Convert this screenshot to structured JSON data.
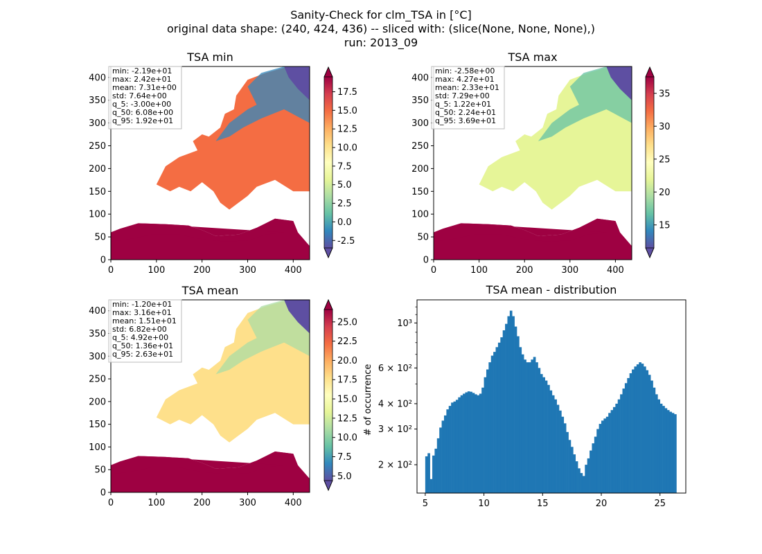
{
  "figure": {
    "title_lines": [
      "Sanity-Check for clm_TSA in [°C]",
      "original data shape: (240, 424, 436) -- sliced with: (slice(None, None, None),)",
      "run: 2013_09"
    ]
  },
  "chart_data": [
    {
      "type": "heatmap",
      "title": "TSA min",
      "xticks": [
        0,
        100,
        200,
        300,
        400
      ],
      "yticks": [
        0,
        50,
        100,
        150,
        200,
        250,
        300,
        350,
        400
      ],
      "xlim": [
        0,
        436
      ],
      "ylim": [
        0,
        424
      ],
      "colormap": "Spectral_r",
      "colorbar_ticks": [
        "-2.5",
        "0.0",
        "2.5",
        "5.0",
        "7.5",
        "10.0",
        "12.5",
        "15.0",
        "17.5"
      ],
      "colorbar_range": [
        -3.5,
        19.5
      ],
      "colorbar_extend": "both",
      "stats": [
        "min: -2.19e+01",
        "max: 2.42e+01",
        "mean: 7.31e+00",
        "std: 7.64e+00",
        "q_5: -3.00e+00",
        "q_50: 6.08e+00",
        "q_95: 1.92e+01"
      ]
    },
    {
      "type": "heatmap",
      "title": "TSA max",
      "xticks": [
        0,
        100,
        200,
        300,
        400
      ],
      "yticks": [
        0,
        50,
        100,
        150,
        200,
        250,
        300,
        350,
        400
      ],
      "xlim": [
        0,
        436
      ],
      "ylim": [
        0,
        424
      ],
      "colormap": "Spectral_r",
      "colorbar_ticks": [
        "15",
        "20",
        "25",
        "30",
        "35"
      ],
      "colorbar_range": [
        11.5,
        37.5
      ],
      "colorbar_extend": "both",
      "stats": [
        "min: -2.58e+00",
        "max: 4.27e+01",
        "mean: 2.33e+01",
        "std: 7.29e+00",
        "q_5: 1.22e+01",
        "q_50: 2.24e+01",
        "q_95: 3.69e+01"
      ]
    },
    {
      "type": "heatmap",
      "title": "TSA mean",
      "xticks": [
        0,
        100,
        200,
        300,
        400
      ],
      "yticks": [
        0,
        50,
        100,
        150,
        200,
        250,
        300,
        350,
        400
      ],
      "xlim": [
        0,
        436
      ],
      "ylim": [
        0,
        424
      ],
      "colormap": "Spectral_r",
      "colorbar_ticks": [
        "5.0",
        "7.5",
        "10.0",
        "12.5",
        "15.0",
        "17.5",
        "20.0",
        "22.5",
        "25.0"
      ],
      "colorbar_range": [
        4.4,
        26.6
      ],
      "colorbar_extend": "both",
      "stats": [
        "min: -1.20e+01",
        "max: 3.16e+01",
        "mean: 1.51e+01",
        "std: 6.82e+00",
        "q_5: 4.92e+00",
        "q_50: 1.36e+01",
        "q_95: 2.63e+01"
      ]
    },
    {
      "type": "bar",
      "title": "TSA mean - distribution",
      "ylabel": "# of occurrence",
      "yscale": "log",
      "xlim": [
        4.3,
        27.2
      ],
      "ylim": [
        145,
        1300
      ],
      "xticks": [
        5,
        10,
        15,
        20,
        25
      ],
      "yticks": [
        {
          "value": 200,
          "label": "2 × 10²"
        },
        {
          "value": 300,
          "label": "3 × 10²"
        },
        {
          "value": 400,
          "label": "4 × 10²"
        },
        {
          "value": 600,
          "label": "6 × 10²"
        },
        {
          "value": 1000,
          "label": "10³"
        }
      ],
      "bar_color": "#1f77b4",
      "bins": [
        [
          5.0,
          220
        ],
        [
          5.2,
          228
        ],
        [
          5.4,
          170
        ],
        [
          5.6,
          222
        ],
        [
          5.8,
          240
        ],
        [
          6.0,
          270
        ],
        [
          6.2,
          305
        ],
        [
          6.4,
          330
        ],
        [
          6.6,
          350
        ],
        [
          6.8,
          375
        ],
        [
          7.0,
          390
        ],
        [
          7.2,
          405
        ],
        [
          7.4,
          410
        ],
        [
          7.6,
          418
        ],
        [
          7.8,
          430
        ],
        [
          8.0,
          440
        ],
        [
          8.2,
          448
        ],
        [
          8.4,
          455
        ],
        [
          8.6,
          460
        ],
        [
          8.8,
          458
        ],
        [
          9.0,
          452
        ],
        [
          9.2,
          445
        ],
        [
          9.4,
          440
        ],
        [
          9.6,
          448
        ],
        [
          9.8,
          480
        ],
        [
          10.0,
          540
        ],
        [
          10.2,
          590
        ],
        [
          10.4,
          640
        ],
        [
          10.6,
          690
        ],
        [
          10.8,
          720
        ],
        [
          11.0,
          760
        ],
        [
          11.2,
          800
        ],
        [
          11.4,
          850
        ],
        [
          11.6,
          920
        ],
        [
          11.8,
          990
        ],
        [
          12.0,
          1080
        ],
        [
          12.2,
          1150
        ],
        [
          12.4,
          1080
        ],
        [
          12.6,
          960
        ],
        [
          12.8,
          860
        ],
        [
          13.0,
          760
        ],
        [
          13.2,
          700
        ],
        [
          13.4,
          660
        ],
        [
          13.6,
          640
        ],
        [
          13.8,
          640
        ],
        [
          14.0,
          660
        ],
        [
          14.2,
          680
        ],
        [
          14.4,
          640
        ],
        [
          14.6,
          600
        ],
        [
          14.8,
          560
        ],
        [
          15.0,
          540
        ],
        [
          15.2,
          520
        ],
        [
          15.4,
          495
        ],
        [
          15.6,
          465
        ],
        [
          15.8,
          440
        ],
        [
          16.0,
          420
        ],
        [
          16.2,
          395
        ],
        [
          16.4,
          370
        ],
        [
          16.6,
          345
        ],
        [
          16.8,
          320
        ],
        [
          17.0,
          290
        ],
        [
          17.2,
          265
        ],
        [
          17.4,
          245
        ],
        [
          17.6,
          225
        ],
        [
          17.8,
          208
        ],
        [
          18.0,
          192
        ],
        [
          18.2,
          182
        ],
        [
          18.4,
          176
        ],
        [
          18.6,
          200
        ],
        [
          18.8,
          215
        ],
        [
          19.0,
          235
        ],
        [
          19.2,
          255
        ],
        [
          19.4,
          275
        ],
        [
          19.6,
          300
        ],
        [
          19.8,
          318
        ],
        [
          20.0,
          330
        ],
        [
          20.2,
          338
        ],
        [
          20.4,
          345
        ],
        [
          20.6,
          360
        ],
        [
          20.8,
          372
        ],
        [
          21.0,
          385
        ],
        [
          21.2,
          400
        ],
        [
          21.4,
          420
        ],
        [
          21.6,
          445
        ],
        [
          21.8,
          475
        ],
        [
          22.0,
          505
        ],
        [
          22.2,
          535
        ],
        [
          22.4,
          565
        ],
        [
          22.6,
          590
        ],
        [
          22.8,
          610
        ],
        [
          23.0,
          625
        ],
        [
          23.2,
          640
        ],
        [
          23.4,
          630
        ],
        [
          23.6,
          610
        ],
        [
          23.8,
          585
        ],
        [
          24.0,
          555
        ],
        [
          24.2,
          520
        ],
        [
          24.4,
          480
        ],
        [
          24.6,
          445
        ],
        [
          24.8,
          420
        ],
        [
          25.0,
          400
        ],
        [
          25.2,
          390
        ],
        [
          25.4,
          380
        ],
        [
          25.6,
          372
        ],
        [
          25.8,
          365
        ],
        [
          26.0,
          360
        ],
        [
          26.2,
          355
        ]
      ],
      "bin_width": 0.2
    }
  ]
}
